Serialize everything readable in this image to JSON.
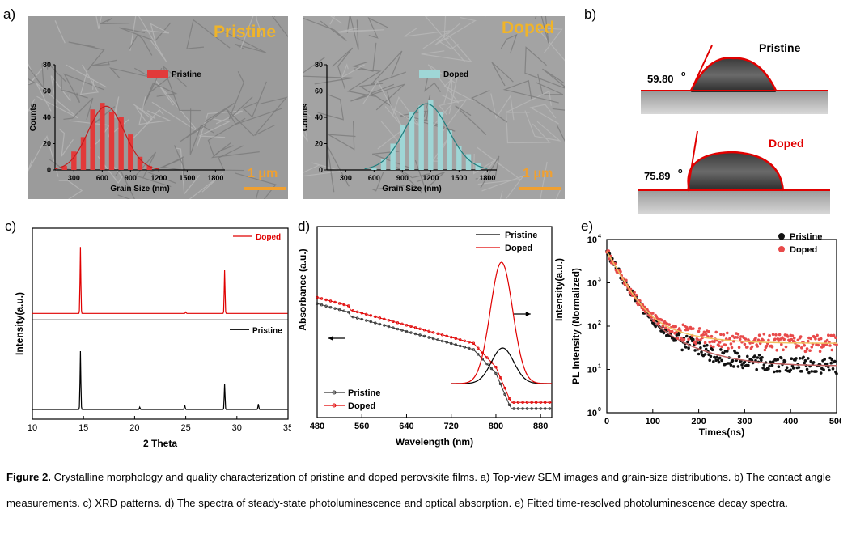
{
  "panel_labels": {
    "a": "a)",
    "b": "b)",
    "c": "c)",
    "d": "d)",
    "e": "e)"
  },
  "panel_a": {
    "pristine": {
      "title": "Pristine",
      "scale_bar": "1 μm",
      "legend": "Pristine",
      "xlabel": "Grain Size (nm)",
      "ylabel": "Counts",
      "xticks": [
        "300",
        "600",
        "900",
        "1200",
        "1500",
        "1800"
      ],
      "yticks": [
        "0",
        "20",
        "40",
        "60",
        "80"
      ],
      "bar_color": "#e23a3a"
    },
    "doped": {
      "title": "Doped",
      "scale_bar": "1 μm",
      "legend": "Doped",
      "xlabel": "Grain Size (nm)",
      "ylabel": "Counts",
      "xticks": [
        "300",
        "600",
        "900",
        "1200",
        "1500",
        "1800"
      ],
      "yticks": [
        "0",
        "20",
        "40",
        "60",
        "80"
      ],
      "bar_color": "#9fd6d6"
    }
  },
  "panel_b": {
    "pristine_label": "Pristine",
    "pristine_angle": "59.80",
    "doped_label": "Doped",
    "doped_angle": "75.89",
    "degree_mark": "o"
  },
  "panel_c": {
    "xlabel": "2 Theta",
    "ylabel": "Intensity(a.u.)",
    "xticks": [
      "10",
      "15",
      "20",
      "25",
      "30",
      "35"
    ],
    "legend_doped": "Doped",
    "legend_pristine": "Pristine"
  },
  "panel_d": {
    "xlabel": "Wavelength (nm)",
    "ylabel_left": "Absorbance (a.u.)",
    "ylabel_right": "Intensity(a.u.)",
    "xticks": [
      "480",
      "560",
      "640",
      "720",
      "800",
      "880"
    ],
    "legend_pl": [
      "Pristine",
      "Doped"
    ],
    "legend_abs": [
      "Pristine",
      "Doped"
    ]
  },
  "panel_e": {
    "xlabel": "Times(ns)",
    "ylabel": "PL Intensity (Normalized)",
    "xticks": [
      "0",
      "100",
      "200",
      "300",
      "400",
      "500"
    ],
    "yticks": [
      "10",
      "10",
      "10",
      "10",
      "10"
    ],
    "yexp": [
      "4",
      "3",
      "2",
      "1",
      "0"
    ],
    "legend": [
      "Pristine",
      "Doped"
    ]
  },
  "caption": {
    "figure_label": "Figure 2.",
    "text": " Crystalline morphology and quality characterization of pristine and doped perovskite films. a) Top-view SEM images and grain-size distributions. b) The contact angle measurements. c) XRD patterns. d) The spectra of steady-state photoluminescence and optical absorption. e) Fitted time-resolved photoluminescence decay spectra."
  },
  "chart_data": [
    {
      "type": "bar",
      "title": "Pristine",
      "xlabel": "Grain Size (nm)",
      "ylabel": "Counts",
      "x": [
        200,
        300,
        400,
        500,
        600,
        700,
        800,
        900,
        1000,
        1100
      ],
      "values": [
        3,
        14,
        25,
        46,
        51,
        44,
        40,
        27,
        10,
        3
      ],
      "ylim": [
        0,
        80
      ],
      "xlim": [
        100,
        1900
      ]
    },
    {
      "type": "bar",
      "title": "Doped",
      "xlabel": "Grain Size (nm)",
      "ylabel": "Counts",
      "x": [
        600,
        700,
        800,
        900,
        1000,
        1100,
        1200,
        1300,
        1400,
        1500,
        1600,
        1700
      ],
      "values": [
        2,
        8,
        20,
        34,
        44,
        49,
        53,
        44,
        30,
        18,
        12,
        5
      ],
      "ylim": [
        0,
        80
      ],
      "xlim": [
        100,
        1900
      ]
    },
    {
      "type": "line",
      "xlabel": "2 Theta",
      "ylabel": "Intensity(a.u.)",
      "xlim": [
        10,
        35
      ],
      "series": [
        {
          "name": "Doped",
          "peaks": [
            {
              "x": 14.7,
              "y": 1.0
            },
            {
              "x": 28.8,
              "y": 0.65
            },
            {
              "x": 25.0,
              "y": 0.02
            }
          ]
        },
        {
          "name": "Pristine",
          "peaks": [
            {
              "x": 14.7,
              "y": 0.75
            },
            {
              "x": 28.8,
              "y": 0.33
            },
            {
              "x": 24.9,
              "y": 0.06
            },
            {
              "x": 20.5,
              "y": 0.03
            },
            {
              "x": 32.1,
              "y": 0.07
            }
          ]
        }
      ]
    },
    {
      "type": "line",
      "xlabel": "Wavelength (nm)",
      "ylabel": "Absorbance (a.u.)",
      "xlim": [
        480,
        900
      ],
      "series": [
        {
          "name": "Pristine",
          "kind": "absorbance"
        },
        {
          "name": "Doped",
          "kind": "absorbance"
        },
        {
          "name": "Pristine",
          "kind": "PL",
          "peak_nm": 812
        },
        {
          "name": "Doped",
          "kind": "PL",
          "peak_nm": 810
        }
      ]
    },
    {
      "type": "scatter",
      "xlabel": "Times(ns)",
      "ylabel": "PL Intensity (Normalized)",
      "xlim": [
        0,
        500
      ],
      "ylim": [
        1,
        10000
      ],
      "yscale": "log",
      "series": [
        {
          "name": "Pristine",
          "plateau": 12
        },
        {
          "name": "Doped",
          "plateau": 40
        }
      ]
    }
  ]
}
